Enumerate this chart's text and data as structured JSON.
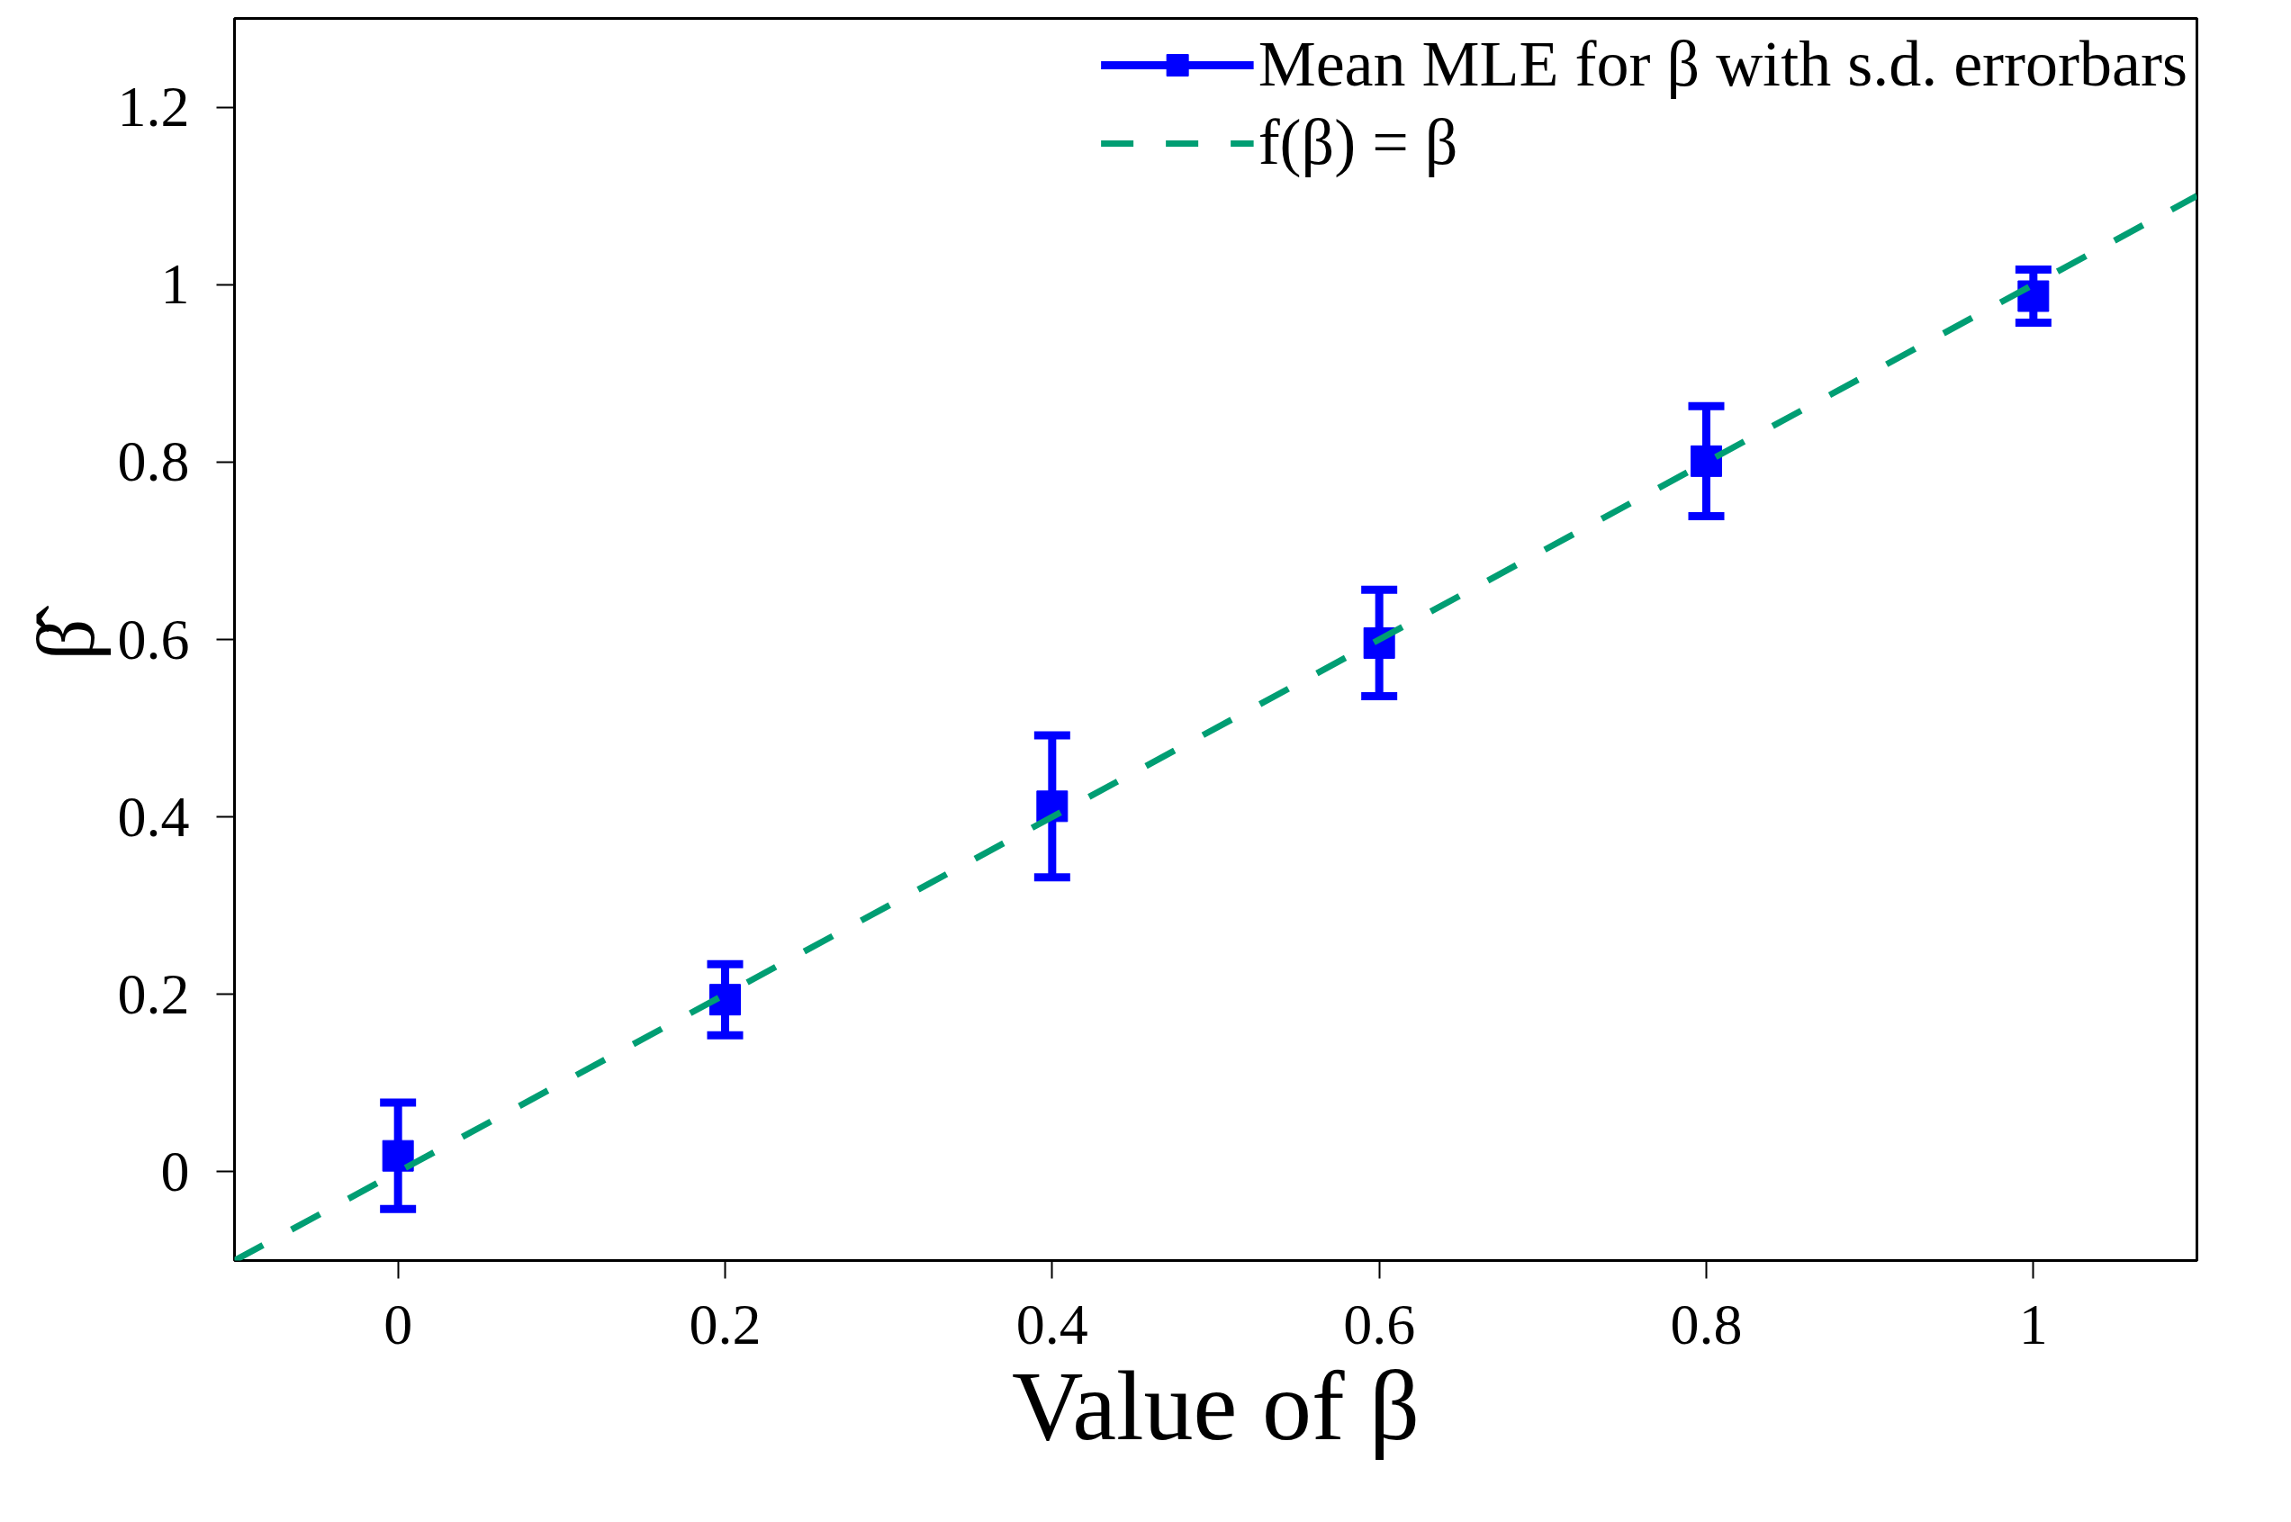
{
  "chart_data": {
    "type": "scatter",
    "xlabel": "Value of β",
    "ylabel": "β̂",
    "xlim": [
      -0.1,
      1.1
    ],
    "ylim": [
      -0.1,
      1.3
    ],
    "xticks": [
      0,
      0.2,
      0.4,
      0.6,
      0.8,
      1
    ],
    "yticks": [
      0,
      0.2,
      0.4,
      0.6,
      0.8,
      1,
      1.2
    ],
    "grid": false,
    "legend": "top right",
    "series": [
      {
        "name": "Mean MLE for β with s.d. errorbars",
        "color": "#0000ff",
        "marker": "square",
        "x": [
          0,
          0.2,
          0.4,
          0.6,
          0.8,
          1
        ],
        "values": [
          0.018,
          0.194,
          0.412,
          0.596,
          0.801,
          0.987
        ],
        "errors": [
          0.06,
          0.04,
          0.08,
          0.06,
          0.062,
          0.03
        ]
      },
      {
        "name": "f(β) = β",
        "type": "line",
        "color": "#009e73",
        "line_style": "dashed",
        "x": [
          -0.1,
          1.1
        ],
        "values": [
          -0.1,
          1.1
        ]
      }
    ]
  }
}
